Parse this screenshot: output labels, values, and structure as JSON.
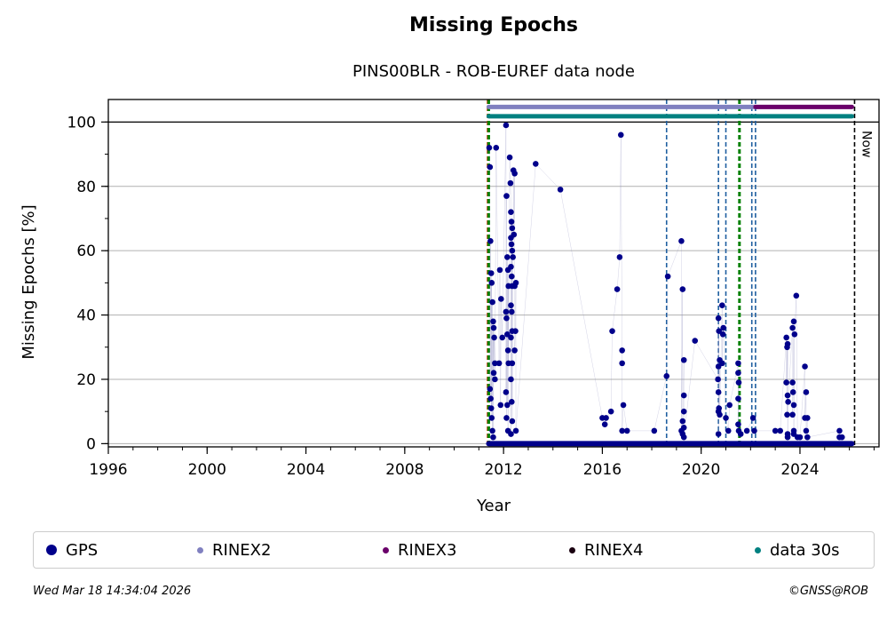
{
  "title": "Missing Epochs",
  "subtitle": "PINS00BLR - ROB-EUREF data node",
  "footer": {
    "timestamp": "Wed Mar 18 14:34:04 2026",
    "copyright": "©GNSS@ROB"
  },
  "colors": {
    "gps": "#00008b",
    "rinex2": "#8080c0",
    "rinex3": "#6a006a",
    "rinex4": "#1a0010",
    "data30s": "#008080",
    "vline_blue": "#1f5fa0",
    "vline_green": "#008000",
    "vline_red": "#cc3300"
  },
  "legend": [
    {
      "label": "GPS",
      "color": "#00008b",
      "dot": "large"
    },
    {
      "label": "RINEX2",
      "color": "#8080c0",
      "dot": "small"
    },
    {
      "label": "RINEX3",
      "color": "#6a006a",
      "dot": "small"
    },
    {
      "label": "RINEX4",
      "color": "#1a0010",
      "dot": "small"
    },
    {
      "label": "data 30s",
      "color": "#008080",
      "dot": "small"
    }
  ],
  "chart_data": {
    "type": "scatter",
    "title": "Missing Epochs",
    "subtitle": "PINS00BLR - ROB-EUREF data node",
    "xlabel": "Year",
    "ylabel": "Missing Epochs [%]",
    "xlim": [
      1996,
      2027.2
    ],
    "ylim": [
      -1,
      107
    ],
    "xticks": [
      1996,
      2000,
      2004,
      2008,
      2012,
      2016,
      2020,
      2024
    ],
    "yticks": [
      0,
      20,
      40,
      60,
      80,
      100
    ],
    "grid": "horizontal",
    "reference_line_y": 100,
    "now_label": "Now",
    "now_x": 2026.21,
    "vertical_lines": [
      {
        "x": 2011.35,
        "color": "red",
        "style": "dashed"
      },
      {
        "x": 2011.4,
        "color": "green",
        "style": "dashed"
      },
      {
        "x": 2018.6,
        "color": "blue",
        "style": "dashed"
      },
      {
        "x": 2020.7,
        "color": "blue",
        "style": "dashed"
      },
      {
        "x": 2021.0,
        "color": "blue",
        "style": "dashed"
      },
      {
        "x": 2021.55,
        "color": "green",
        "style": "dashed"
      },
      {
        "x": 2022.05,
        "color": "blue",
        "style": "dashed"
      },
      {
        "x": 2022.2,
        "color": "blue",
        "style": "dashed"
      }
    ],
    "bars": [
      {
        "name": "RINEX2",
        "y": 104.7,
        "x_start": 2011.4,
        "x_end": 2022.2
      },
      {
        "name": "RINEX3",
        "y": 104.7,
        "x_start": 2022.2,
        "x_end": 2026.1
      },
      {
        "name": "data 30s",
        "y": 101.8,
        "x_start": 2011.4,
        "x_end": 2026.1
      }
    ],
    "series": [
      {
        "name": "GPS",
        "baseline": {
          "y": 0,
          "x_start": 2011.4,
          "x_end": 2026.1
        },
        "points": [
          [
            2011.42,
            92
          ],
          [
            2011.45,
            86
          ],
          [
            2011.47,
            63
          ],
          [
            2011.5,
            53
          ],
          [
            2011.52,
            50
          ],
          [
            2011.55,
            44
          ],
          [
            2011.58,
            38
          ],
          [
            2011.6,
            36
          ],
          [
            2011.62,
            33
          ],
          [
            2011.65,
            25
          ],
          [
            2011.45,
            17
          ],
          [
            2011.48,
            14
          ],
          [
            2011.5,
            11
          ],
          [
            2011.52,
            8
          ],
          [
            2011.55,
            4
          ],
          [
            2011.58,
            2
          ],
          [
            2011.6,
            22
          ],
          [
            2011.65,
            20
          ],
          [
            2011.7,
            92
          ],
          [
            2011.85,
            54
          ],
          [
            2011.9,
            45
          ],
          [
            2011.95,
            33
          ],
          [
            2011.82,
            25
          ],
          [
            2011.88,
            12
          ],
          [
            2012.1,
            99
          ],
          [
            2012.12,
            77
          ],
          [
            2012.15,
            58
          ],
          [
            2012.18,
            54
          ],
          [
            2012.2,
            49
          ],
          [
            2012.1,
            41
          ],
          [
            2012.12,
            39
          ],
          [
            2012.15,
            34
          ],
          [
            2012.18,
            29
          ],
          [
            2012.2,
            25
          ],
          [
            2012.1,
            16
          ],
          [
            2012.15,
            12
          ],
          [
            2012.12,
            8
          ],
          [
            2012.18,
            4
          ],
          [
            2012.25,
            89
          ],
          [
            2012.28,
            81
          ],
          [
            2012.3,
            72
          ],
          [
            2012.32,
            69
          ],
          [
            2012.35,
            67
          ],
          [
            2012.3,
            64
          ],
          [
            2012.32,
            62
          ],
          [
            2012.35,
            60
          ],
          [
            2012.38,
            58
          ],
          [
            2012.3,
            55
          ],
          [
            2012.33,
            52
          ],
          [
            2012.35,
            49
          ],
          [
            2012.3,
            43
          ],
          [
            2012.33,
            41
          ],
          [
            2012.35,
            35
          ],
          [
            2012.3,
            33
          ],
          [
            2012.35,
            25
          ],
          [
            2012.3,
            20
          ],
          [
            2012.33,
            13
          ],
          [
            2012.35,
            7
          ],
          [
            2012.3,
            3
          ],
          [
            2012.4,
            85
          ],
          [
            2012.45,
            84
          ],
          [
            2012.42,
            65
          ],
          [
            2012.5,
            50
          ],
          [
            2012.45,
            49
          ],
          [
            2012.48,
            35
          ],
          [
            2012.45,
            29
          ],
          [
            2012.5,
            4
          ],
          [
            2013.3,
            87
          ],
          [
            2014.3,
            79
          ],
          [
            2016.0,
            8
          ],
          [
            2016.15,
            8
          ],
          [
            2016.1,
            6
          ],
          [
            2016.4,
            35
          ],
          [
            2016.35,
            10
          ],
          [
            2016.6,
            48
          ],
          [
            2016.7,
            58
          ],
          [
            2016.75,
            96
          ],
          [
            2016.8,
            29
          ],
          [
            2016.8,
            25
          ],
          [
            2016.85,
            12
          ],
          [
            2016.8,
            4
          ],
          [
            2017.0,
            4
          ],
          [
            2018.1,
            4
          ],
          [
            2018.65,
            52
          ],
          [
            2018.6,
            21
          ],
          [
            2019.2,
            63
          ],
          [
            2019.25,
            48
          ],
          [
            2019.3,
            26
          ],
          [
            2019.3,
            15
          ],
          [
            2019.3,
            10
          ],
          [
            2019.25,
            7
          ],
          [
            2019.3,
            5
          ],
          [
            2019.2,
            4
          ],
          [
            2019.25,
            3
          ],
          [
            2019.3,
            2
          ],
          [
            2019.75,
            32
          ],
          [
            2020.7,
            39
          ],
          [
            2020.72,
            35
          ],
          [
            2020.75,
            26
          ],
          [
            2020.7,
            24
          ],
          [
            2020.68,
            20
          ],
          [
            2020.7,
            16
          ],
          [
            2020.72,
            11
          ],
          [
            2020.7,
            10
          ],
          [
            2020.75,
            9
          ],
          [
            2020.7,
            3
          ],
          [
            2020.85,
            43
          ],
          [
            2020.9,
            36
          ],
          [
            2020.88,
            34
          ],
          [
            2020.85,
            25
          ],
          [
            2021.0,
            8
          ],
          [
            2021.1,
            4
          ],
          [
            2021.15,
            12
          ],
          [
            2021.5,
            25
          ],
          [
            2021.5,
            22
          ],
          [
            2021.52,
            19
          ],
          [
            2021.5,
            14
          ],
          [
            2021.5,
            6
          ],
          [
            2021.52,
            4
          ],
          [
            2021.6,
            3
          ],
          [
            2021.85,
            4
          ],
          [
            2022.1,
            8
          ],
          [
            2022.15,
            4
          ],
          [
            2023.0,
            4
          ],
          [
            2023.2,
            4
          ],
          [
            2023.45,
            33
          ],
          [
            2023.5,
            31
          ],
          [
            2023.48,
            30
          ],
          [
            2023.45,
            19
          ],
          [
            2023.5,
            15
          ],
          [
            2023.52,
            13
          ],
          [
            2023.48,
            9
          ],
          [
            2023.5,
            3
          ],
          [
            2023.5,
            2
          ],
          [
            2023.7,
            36
          ],
          [
            2023.75,
            38
          ],
          [
            2023.78,
            34
          ],
          [
            2023.7,
            19
          ],
          [
            2023.72,
            16
          ],
          [
            2023.75,
            12
          ],
          [
            2023.7,
            9
          ],
          [
            2023.75,
            4
          ],
          [
            2023.75,
            3
          ],
          [
            2023.85,
            46
          ],
          [
            2023.9,
            2
          ],
          [
            2024.0,
            2
          ],
          [
            2024.2,
            24
          ],
          [
            2024.25,
            16
          ],
          [
            2024.2,
            8
          ],
          [
            2024.3,
            8
          ],
          [
            2024.25,
            4
          ],
          [
            2024.3,
            2
          ],
          [
            2025.6,
            4
          ],
          [
            2025.6,
            2
          ],
          [
            2025.7,
            2
          ]
        ]
      }
    ]
  }
}
